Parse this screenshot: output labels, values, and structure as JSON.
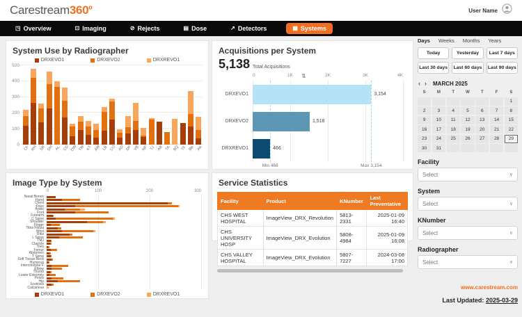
{
  "header": {
    "logo_gray": "Carestream",
    "logo_orange": "360",
    "logo_degree": "o",
    "user_name": "User Name"
  },
  "nav": {
    "items": [
      {
        "label": "Overview",
        "icon": "overview-icon",
        "glyph": "◳"
      },
      {
        "label": "Imaging",
        "icon": "imaging-icon",
        "glyph": "⊡"
      },
      {
        "label": "Rejects",
        "icon": "rejects-icon",
        "glyph": "⊘"
      },
      {
        "label": "Dose",
        "icon": "dose-icon",
        "glyph": "▤"
      },
      {
        "label": "Detectors",
        "icon": "detectors-icon",
        "glyph": "↗"
      },
      {
        "label": "Systems",
        "icon": "systems-icon",
        "glyph": "▦"
      }
    ],
    "active": "Systems"
  },
  "colors": {
    "accent": "#f26f21",
    "evo1": "#a63e09",
    "evo2": "#e2700f",
    "revo1": "#f9a65a",
    "blue_light": "#b5e2f7",
    "blue_mid": "#5e97b5",
    "blue_dark": "#0d4a70",
    "table_header_bg": "#ee7b24"
  },
  "chart_data": [
    {
      "id": "system_use",
      "type": "bar",
      "stacked": true,
      "title": "System Use by Radiographer",
      "categories": [
        "CF",
        "RH",
        "SB",
        "DH",
        "AL",
        "CD",
        "DW",
        "TW",
        "KT",
        "AW",
        "LB",
        "CO",
        "AD",
        "DP",
        "VB",
        "NP",
        "TJ",
        "AB",
        "TA",
        "BQ",
        "TF",
        "BK",
        "AK"
      ],
      "series": [
        {
          "name": "DRXEVO1",
          "color": "#a63e09",
          "values": [
            120,
            265,
            140,
            228,
            0,
            170,
            52,
            92,
            62,
            45,
            88,
            160,
            45,
            72,
            90,
            47,
            0,
            146,
            0,
            0,
            134,
            115,
            40
          ]
        },
        {
          "name": "DRXEVO2",
          "color": "#e2700f",
          "values": [
            60,
            155,
            88,
            155,
            365,
            105,
            62,
            55,
            50,
            48,
            118,
            112,
            28,
            36,
            58,
            10,
            158,
            0,
            79,
            0,
            0,
            77,
            52
          ]
        },
        {
          "name": "DRXREVO1",
          "color": "#f9a65a",
          "values": [
            38,
            58,
            32,
            79,
            35,
            85,
            16,
            31,
            36,
            39,
            32,
            18,
            22,
            74,
            117,
            50,
            7,
            0,
            0,
            163,
            0,
            145,
            83
          ]
        }
      ],
      "ylim": [
        0,
        500
      ],
      "yticks": [
        0,
        100,
        200,
        300,
        400,
        500
      ],
      "grid": true,
      "legend_position": "top"
    },
    {
      "id": "acquisitions",
      "type": "bar",
      "orientation": "horizontal",
      "title": "Acquisitions per System",
      "total_label": "5,138",
      "total_sub": "Total Acquisitions",
      "categories": [
        "DRXEVO1",
        "DRXEVO2",
        "DRXREVO1"
      ],
      "values": [
        3154,
        1518,
        466
      ],
      "value_labels": [
        "3,154",
        "1,518",
        "466"
      ],
      "bar_colors": [
        "#b5e2f7",
        "#5e97b5",
        "#0d4a70"
      ],
      "xlim": [
        0,
        4000
      ],
      "xticks": [
        "0",
        "1K",
        "2K",
        "3K",
        "4K"
      ],
      "sort_icon": "⇅",
      "min": 466,
      "max": 3154,
      "min_label": "Min 466",
      "max_label": "Max 3,154",
      "grid": true
    },
    {
      "id": "image_type",
      "type": "bar",
      "orientation": "horizontal",
      "stacked": true,
      "title": "Image Type by System",
      "categories": [
        "Nasal Bones",
        "Hand",
        "Chest",
        "Knee",
        "Ankle",
        "Foot",
        "Forearm",
        "C Spine",
        "Shoulder",
        "Finger",
        "Tibia Fibula",
        "Wrist",
        "Ribs",
        "L Spine",
        "TMJ",
        "Clavicle",
        "Toes",
        "Femur",
        "Abdomen",
        "T Spine",
        "Soft Tissue Neck",
        "Humerus",
        "Intercondylar F",
        "Elbow",
        "Thumb",
        "Lower Extremity",
        "Pelvis",
        "Hip",
        "Scoliosis",
        "Calcaneus"
      ],
      "series": [
        {
          "name": "DRXEVO1",
          "color": "#a63e09",
          "values": [
            18,
            30,
            235,
            55,
            35,
            55,
            12,
            18,
            78,
            8,
            22,
            30,
            45,
            25,
            8,
            7,
            3,
            8,
            6,
            8,
            10,
            4,
            10,
            10,
            7,
            5,
            10,
            22,
            10,
            0
          ]
        },
        {
          "name": "DRXEVO2",
          "color": "#e2700f",
          "values": [
            0,
            35,
            8,
            200,
            30,
            65,
            2,
            110,
            32,
            18,
            6,
            60,
            5,
            45,
            2,
            2,
            3,
            12,
            2,
            2,
            2,
            1,
            32,
            20,
            2,
            13,
            22,
            43,
            3,
            0
          ]
        },
        {
          "name": "DRXREVO1",
          "color": "#f9a65a",
          "values": [
            0,
            0,
            0,
            3,
            10,
            0,
            0,
            5,
            5,
            0,
            0,
            5,
            0,
            0,
            0,
            0,
            0,
            0,
            0,
            0,
            0,
            0,
            0,
            0,
            0,
            0,
            0,
            0,
            0,
            4
          ]
        }
      ],
      "xlim": [
        0,
        300
      ],
      "xticks": [
        0,
        100,
        200,
        300
      ],
      "grid": true,
      "legend_position": "bottom"
    },
    {
      "id": "service_stats",
      "type": "table",
      "title": "Service Statistics",
      "columns": [
        "Facility",
        "Product",
        "KNumber",
        "Last Preventative"
      ],
      "rows": [
        [
          "CHS WEST HOSPITAL",
          "ImageView_DRX_Revolution",
          "5813-2331",
          "2025-01-09 16:40"
        ],
        [
          "CHS UNIVERSITY HOSP",
          "ImageView_DRX_Evolution",
          "5808-4984",
          "2025-01-09 16:08"
        ],
        [
          "CHS VALLEY HOSPITAL",
          "ImageView_DRX_Evolution",
          "5807-7227",
          "2024-03-08 17:00"
        ]
      ]
    }
  ],
  "sidebar": {
    "period_tabs": [
      "Days",
      "Weeks",
      "Months",
      "Years"
    ],
    "active_tab": "Days",
    "quick_buttons": [
      "Today",
      "Yesterday",
      "Last 7 days",
      "Last 30 days",
      "Last 60 days",
      "Last 90 days"
    ],
    "calendar": {
      "prev": "‹",
      "next": "›",
      "month": "MARCH 2025",
      "day_headers": [
        "S",
        "M",
        "T",
        "W",
        "T",
        "F",
        "S"
      ],
      "weeks": [
        [
          "",
          "",
          "",
          "",
          "",
          "",
          "1"
        ],
        [
          "2",
          "3",
          "4",
          "5",
          "6",
          "7",
          "8"
        ],
        [
          "9",
          "10",
          "11",
          "12",
          "13",
          "14",
          "15"
        ],
        [
          "16",
          "17",
          "18",
          "19",
          "20",
          "21",
          "22"
        ],
        [
          "23",
          "24",
          "25",
          "26",
          "27",
          "28",
          "29"
        ],
        [
          "30",
          "31",
          "",
          "",
          "",
          "",
          ""
        ]
      ],
      "selected_day": "29"
    },
    "filters": [
      {
        "label": "Facility",
        "value": "Select"
      },
      {
        "label": "System",
        "value": "Select"
      },
      {
        "label": "KNumber",
        "value": "Select"
      },
      {
        "label": "Radiographer",
        "value": "Select"
      }
    ],
    "website": "www.carestream.com",
    "last_updated_label": "Last Updated:",
    "last_updated_value": "2025-03-29",
    "select_chevron": "∨"
  }
}
